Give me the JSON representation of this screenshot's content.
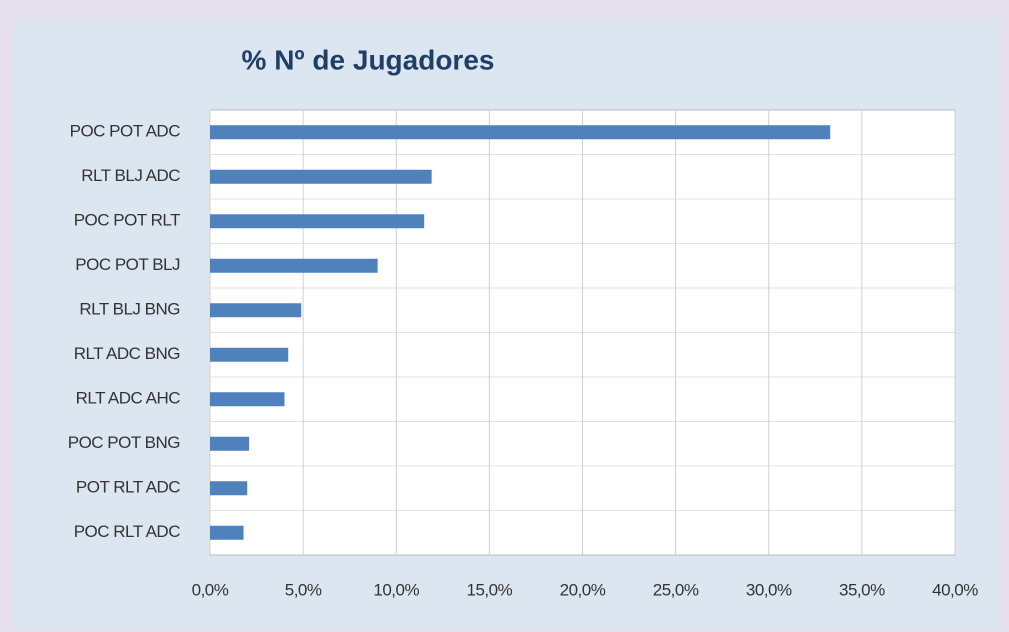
{
  "chart_data": {
    "type": "barh",
    "title": "% Nº de Jugadores",
    "categories": [
      "POC POT ADC",
      "RLT BLJ ADC",
      "POC POT RLT",
      "POC POT BLJ",
      "RLT BLJ BNG",
      "RLT ADC BNG",
      "RLT ADC AHC",
      "POC POT BNG",
      "POT RLT ADC",
      "POC RLT ADC"
    ],
    "values": [
      33.3,
      11.9,
      11.5,
      9.0,
      4.9,
      4.2,
      4.0,
      2.1,
      2.0,
      1.8
    ],
    "color": "#4f81bd",
    "xlim": [
      0,
      40
    ],
    "xticks": [
      {
        "value": 0,
        "label": "0,0%"
      },
      {
        "value": 5,
        "label": "5,0%"
      },
      {
        "value": 10,
        "label": "10,0%"
      },
      {
        "value": 15,
        "label": "15,0%"
      },
      {
        "value": 20,
        "label": "20,0%"
      },
      {
        "value": 25,
        "label": "25,0%"
      },
      {
        "value": 30,
        "label": "30,0%"
      },
      {
        "value": 35,
        "label": "35,0%"
      },
      {
        "value": 40,
        "label": "40,0%"
      }
    ],
    "grid": true
  }
}
